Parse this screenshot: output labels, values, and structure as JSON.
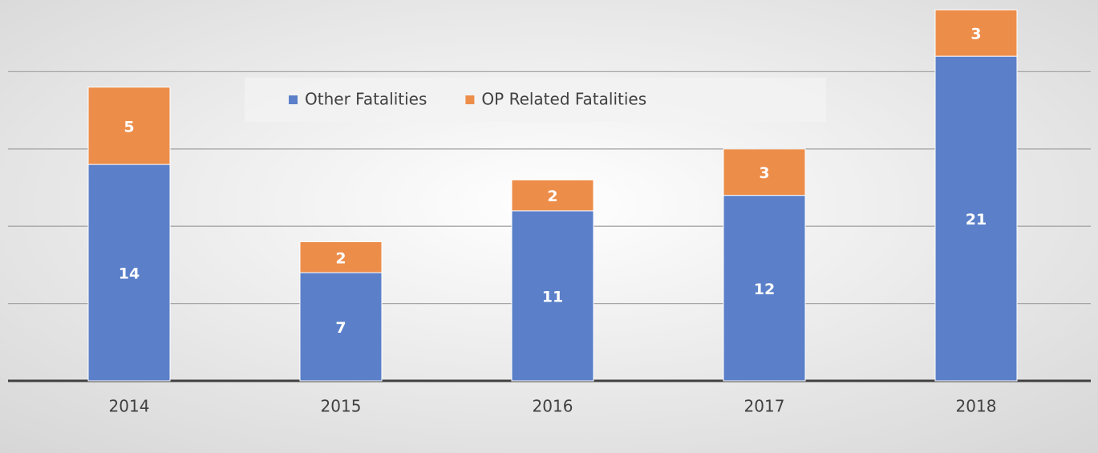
{
  "chart_data": {
    "type": "stacked_bar",
    "categories": [
      "2014",
      "2015",
      "2016",
      "2017",
      "2018"
    ],
    "series": [
      {
        "name": "Other Fatalities",
        "color": "#5b80c9",
        "values": [
          14,
          7,
          11,
          12,
          21
        ]
      },
      {
        "name": "OP Related Fatalities",
        "color": "#ed8d4a",
        "values": [
          5,
          2,
          2,
          3,
          3
        ]
      }
    ],
    "ylim": [
      0,
      25
    ],
    "yticks": [
      0,
      5,
      10,
      15,
      20
    ],
    "grid": true,
    "legend": "top"
  }
}
